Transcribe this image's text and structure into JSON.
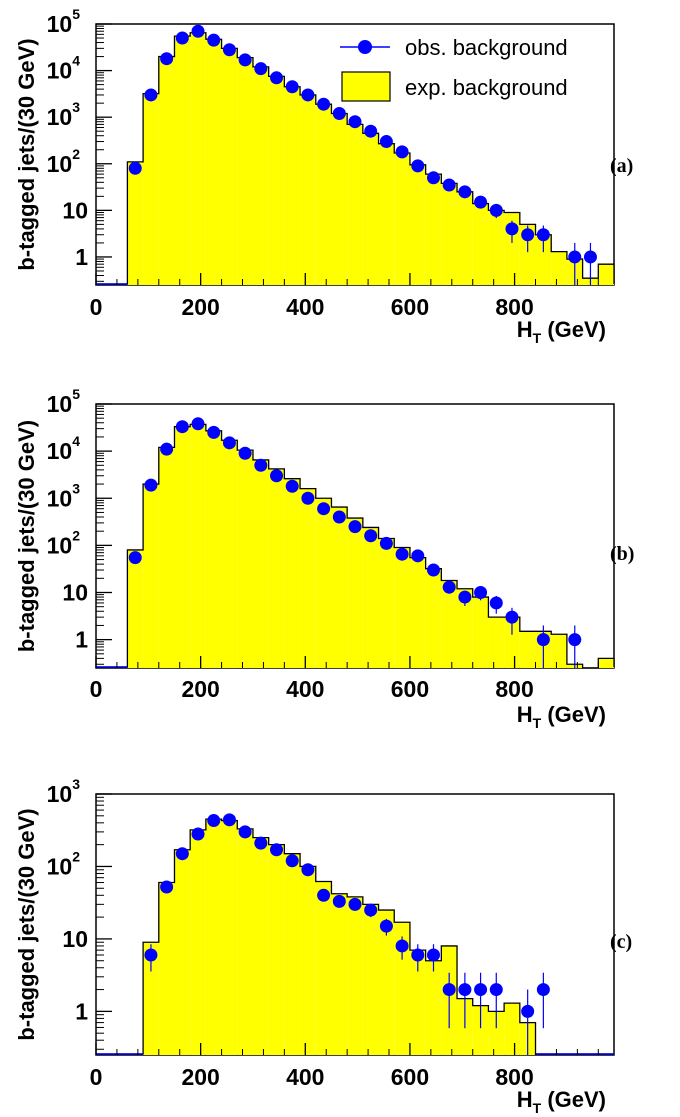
{
  "chart_data": [
    {
      "type": "bar",
      "panel_label": "(a)",
      "ylabel": "b-tagged jets/(30 GeV)",
      "xlabel": "H_T (GeV)",
      "xlim": [
        0,
        990
      ],
      "ylim": [
        0.25,
        100000
      ],
      "yscale": "log",
      "x_ticks": [
        "0",
        "200",
        "400",
        "600",
        "800"
      ],
      "y_ticks": [
        {
          "base": "1"
        },
        {
          "base": "10"
        },
        {
          "base": "10",
          "sup": "2"
        },
        {
          "base": "10",
          "sup": "3"
        },
        {
          "base": "10",
          "sup": "4"
        },
        {
          "base": "10",
          "sup": "5"
        }
      ],
      "legend": {
        "observed": "obs. background",
        "expected": "exp. background"
      },
      "series": [
        {
          "name": "exp. background",
          "bin_edges": [
            60,
            90,
            120,
            150,
            180,
            210,
            240,
            270,
            300,
            330,
            360,
            390,
            420,
            450,
            480,
            510,
            540,
            570,
            600,
            630,
            660,
            690,
            720,
            750,
            780,
            810,
            840,
            870,
            900,
            930,
            960,
            990
          ],
          "values": [
            110,
            3200,
            20000,
            55000,
            65000,
            47000,
            30000,
            19000,
            12000,
            7500,
            4500,
            3000,
            1900,
            1200,
            700,
            450,
            270,
            170,
            95,
            60,
            38,
            25,
            14,
            10,
            9,
            5,
            3,
            1.3,
            0.9,
            0.35,
            0.7
          ]
        },
        {
          "name": "obs. background",
          "x": [
            75,
            105,
            135,
            165,
            195,
            225,
            255,
            285,
            315,
            345,
            375,
            405,
            435,
            465,
            495,
            525,
            555,
            585,
            615,
            645,
            675,
            705,
            735,
            765,
            795,
            825,
            855,
            915,
            945
          ],
          "values": [
            80,
            3000,
            18000,
            50000,
            70000,
            45000,
            28000,
            17000,
            11000,
            7000,
            4500,
            3000,
            1900,
            1200,
            800,
            500,
            300,
            180,
            90,
            50,
            35,
            25,
            15,
            10,
            4,
            3,
            3,
            1,
            1
          ]
        }
      ]
    },
    {
      "type": "bar",
      "panel_label": "(b)",
      "ylabel": "b-tagged jets/(30 GeV)",
      "xlabel": "H_T (GeV)",
      "xlim": [
        0,
        990
      ],
      "ylim": [
        0.25,
        100000
      ],
      "yscale": "log",
      "x_ticks": [
        "0",
        "200",
        "400",
        "600",
        "800"
      ],
      "y_ticks": [
        {
          "base": "1"
        },
        {
          "base": "10"
        },
        {
          "base": "10",
          "sup": "2"
        },
        {
          "base": "10",
          "sup": "3"
        },
        {
          "base": "10",
          "sup": "4"
        },
        {
          "base": "10",
          "sup": "5"
        }
      ],
      "series": [
        {
          "name": "exp. background",
          "bin_edges": [
            60,
            90,
            120,
            150,
            180,
            210,
            240,
            270,
            300,
            330,
            360,
            390,
            420,
            450,
            480,
            510,
            540,
            570,
            600,
            630,
            660,
            690,
            720,
            750,
            780,
            810,
            840,
            870,
            900,
            930,
            960,
            990
          ],
          "values": [
            80,
            2000,
            12000,
            33000,
            37000,
            27000,
            17000,
            10500,
            6500,
            4200,
            2600,
            1600,
            1000,
            650,
            380,
            240,
            140,
            90,
            55,
            32,
            18,
            12,
            8,
            3,
            3,
            1.5,
            1.5,
            1.3,
            0.3,
            0.25,
            0.4
          ]
        },
        {
          "name": "obs. background",
          "x": [
            75,
            105,
            135,
            165,
            195,
            225,
            255,
            285,
            315,
            345,
            375,
            405,
            435,
            465,
            495,
            525,
            555,
            585,
            615,
            645,
            675,
            705,
            735,
            765,
            795,
            855,
            915
          ],
          "values": [
            55,
            1900,
            11000,
            33000,
            38000,
            25000,
            15000,
            9000,
            5000,
            3000,
            1800,
            1000,
            600,
            400,
            250,
            160,
            110,
            65,
            60,
            30,
            13,
            8,
            10,
            6,
            3,
            1,
            1
          ]
        }
      ]
    },
    {
      "type": "bar",
      "panel_label": "(c)",
      "ylabel": "b-tagged jets/(30 GeV)",
      "xlabel": "H_T (GeV)",
      "xlim": [
        0,
        990
      ],
      "ylim": [
        0.25,
        1000
      ],
      "yscale": "log",
      "x_ticks": [
        "0",
        "200",
        "400",
        "600",
        "800"
      ],
      "y_ticks": [
        {
          "base": "1"
        },
        {
          "base": "10"
        },
        {
          "base": "10",
          "sup": "2"
        },
        {
          "base": "10",
          "sup": "3"
        }
      ],
      "series": [
        {
          "name": "exp. background",
          "bin_edges": [
            90,
            120,
            150,
            180,
            210,
            240,
            270,
            300,
            330,
            360,
            390,
            420,
            450,
            480,
            510,
            540,
            570,
            600,
            630,
            660,
            690,
            720,
            750,
            780,
            810,
            840
          ],
          "values": [
            9,
            60,
            170,
            320,
            450,
            430,
            330,
            250,
            200,
            150,
            100,
            62,
            42,
            38,
            30,
            25,
            17,
            7,
            5,
            8,
            1.5,
            1.2,
            1,
            1.3,
            0.7
          ]
        },
        {
          "name": "obs. background",
          "x": [
            105,
            135,
            165,
            195,
            225,
            255,
            285,
            315,
            345,
            375,
            405,
            435,
            465,
            495,
            525,
            555,
            585,
            615,
            645,
            675,
            705,
            735,
            765,
            825,
            855
          ],
          "values": [
            6,
            52,
            150,
            280,
            430,
            440,
            300,
            210,
            170,
            120,
            90,
            40,
            33,
            30,
            25,
            15,
            8,
            6,
            6,
            2,
            2,
            2,
            2,
            1,
            2
          ]
        }
      ]
    }
  ]
}
